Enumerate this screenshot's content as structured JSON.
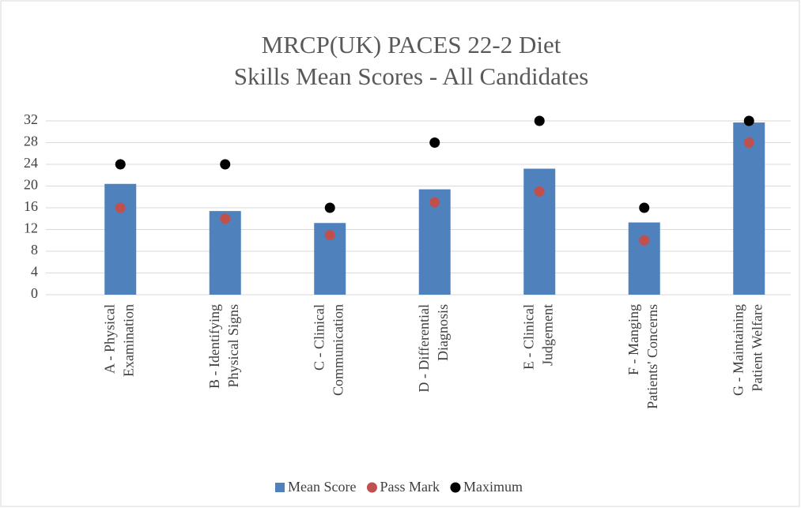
{
  "chart_data": {
    "type": "bar",
    "title": [
      "MRCP(UK) PACES 22-2 Diet",
      "Skills Mean Scores - All Candidates"
    ],
    "categories": [
      [
        "A - Physical",
        "Examination"
      ],
      [
        "B - Identifying",
        "Physical Signs"
      ],
      [
        "C - Clinical",
        "Communication"
      ],
      [
        "D - Differential",
        "Diagnosis"
      ],
      [
        "E - Clinical",
        "Judgement"
      ],
      [
        "F - Manging",
        "Patients' Concerns"
      ],
      [
        "G - Maintaining",
        "Patient Welfare"
      ]
    ],
    "series": [
      {
        "name": "Mean Score",
        "type": "bar",
        "color": "#4f81bd",
        "values": [
          20.4,
          15.4,
          13.2,
          19.4,
          23.2,
          13.3,
          31.7
        ]
      },
      {
        "name": "Pass Mark",
        "type": "scatter",
        "color": "#c0504d",
        "values": [
          16,
          14,
          11,
          17,
          19,
          10,
          28
        ]
      },
      {
        "name": "Maximum",
        "type": "scatter",
        "color": "#000000",
        "values": [
          24,
          24,
          16,
          28,
          32,
          16,
          32
        ]
      }
    ],
    "ylim": [
      0,
      32
    ],
    "yticks": [
      0,
      4,
      8,
      12,
      16,
      20,
      24,
      28,
      32
    ],
    "grid": true,
    "legend": "bottom"
  }
}
